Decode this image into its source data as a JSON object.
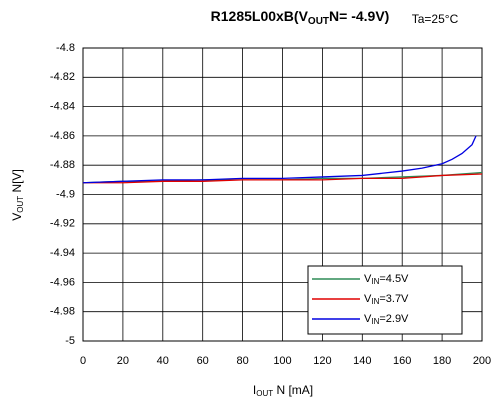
{
  "chart_data": {
    "type": "line",
    "title": [
      "R1285L00xB(V",
      "OUT",
      "N= -4.9V)"
    ],
    "annotation": "Ta=25°C",
    "xlabel": [
      "I",
      "OUT",
      " N [mA]"
    ],
    "ylabel": [
      "V",
      "OUT",
      " N[V]"
    ],
    "xlim": [
      0,
      200
    ],
    "xticks": [
      0,
      20,
      40,
      60,
      80,
      100,
      120,
      140,
      160,
      180,
      200
    ],
    "ylim": [
      -5,
      -4.8
    ],
    "yticks": [
      -4.8,
      -4.82,
      -4.84,
      -4.86,
      -4.88,
      -4.9,
      -4.92,
      -4.94,
      -4.96,
      -4.98,
      -5
    ],
    "grid": true,
    "legend": "lower right",
    "series": [
      {
        "name": [
          "V",
          "IN",
          "=4.5V"
        ],
        "color": "#2e8b57",
        "x": [
          0,
          20,
          40,
          60,
          80,
          100,
          120,
          140,
          160,
          180,
          200
        ],
        "values": [
          -4.892,
          -4.891,
          -4.891,
          -4.89,
          -4.89,
          -4.89,
          -4.889,
          -4.889,
          -4.888,
          -4.887,
          -4.885
        ]
      },
      {
        "name": [
          "V",
          "IN",
          "=3.7V"
        ],
        "color": "#e00000",
        "x": [
          0,
          20,
          40,
          60,
          80,
          100,
          120,
          140,
          160,
          180,
          200
        ],
        "values": [
          -4.892,
          -4.892,
          -4.891,
          -4.891,
          -4.89,
          -4.89,
          -4.89,
          -4.889,
          -4.889,
          -4.887,
          -4.886
        ]
      },
      {
        "name": [
          "V",
          "IN",
          "=2.9V"
        ],
        "color": "#0000e0",
        "x": [
          0,
          20,
          40,
          60,
          80,
          100,
          120,
          140,
          160,
          170,
          180,
          185,
          190,
          195,
          197
        ],
        "values": [
          -4.892,
          -4.891,
          -4.89,
          -4.89,
          -4.889,
          -4.889,
          -4.888,
          -4.887,
          -4.884,
          -4.882,
          -4.879,
          -4.876,
          -4.872,
          -4.866,
          -4.86
        ]
      }
    ]
  }
}
